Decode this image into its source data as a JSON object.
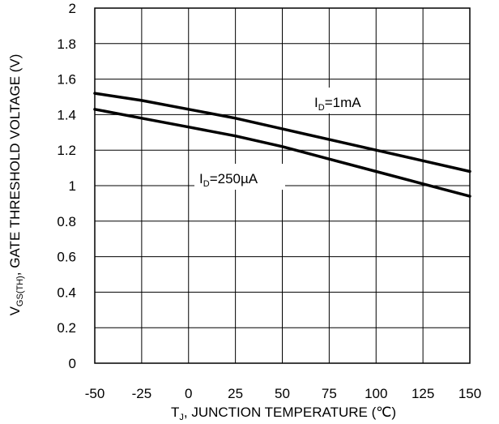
{
  "chart_data": {
    "type": "line",
    "x": [
      -50,
      -25,
      0,
      25,
      50,
      75,
      100,
      125,
      150
    ],
    "series": [
      {
        "name": "1mA",
        "label_main": "I",
        "label_sub": "D",
        "label_rest": "=1mA",
        "values": [
          1.52,
          1.48,
          1.43,
          1.38,
          1.32,
          1.26,
          1.2,
          1.14,
          1.08
        ]
      },
      {
        "name": "250µA",
        "label_main": "I",
        "label_sub": "D",
        "label_rest": "=250µA",
        "values": [
          1.43,
          1.38,
          1.33,
          1.28,
          1.22,
          1.15,
          1.08,
          1.01,
          0.94
        ]
      }
    ],
    "xlim": [
      -50,
      150
    ],
    "ylim": [
      0,
      2
    ],
    "x_ticks": [
      "-50",
      "-25",
      "0",
      "25",
      "50",
      "75",
      "100",
      "125",
      "150"
    ],
    "y_ticks": [
      "0",
      "0.2",
      "0.4",
      "0.6",
      "0.8",
      "1",
      "1.2",
      "1.4",
      "1.6",
      "1.8",
      "2"
    ],
    "xlabel": {
      "main": "T",
      "sub": "J",
      "rest": ", JUNCTION TEMPERATURE (℃)"
    },
    "ylabel": {
      "main": "V",
      "sub": "GS(TH)",
      "rest": ", GATE THRESHOLD VOLTAGE (V)"
    },
    "grid": true
  }
}
